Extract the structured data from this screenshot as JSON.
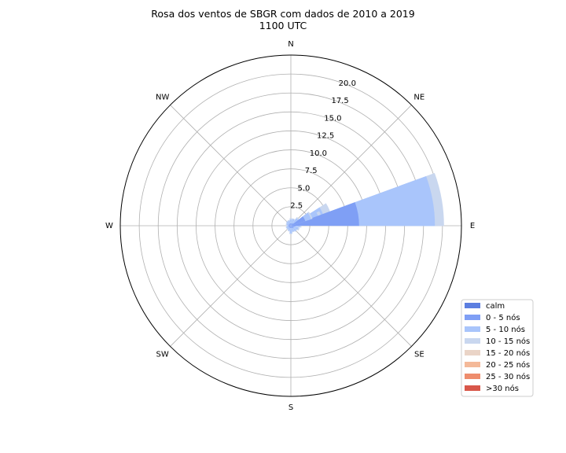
{
  "chart_data": {
    "type": "windrose",
    "title": "Rosa dos ventos de SBGR com dados de 2010 a 2019",
    "subtitle": "1100 UTC",
    "directions": [
      "N",
      "NW",
      "W",
      "SW",
      "S",
      "SE",
      "E",
      "NE"
    ],
    "direction_angles_deg": {
      "N": 0,
      "NW": 315,
      "W": 270,
      "SW": 225,
      "S": 180,
      "SE": 135,
      "E": 90,
      "NE": 45
    },
    "r_ticks": [
      "2.5",
      "5.0",
      "7.5",
      "10.0",
      "12.5",
      "15.0",
      "17.5",
      "20.0"
    ],
    "r_tick_values": [
      2.5,
      5.0,
      7.5,
      10.0,
      12.5,
      15.0,
      17.5,
      20.0
    ],
    "r_max": 22.5,
    "r_tick_label_angle_deg": 22.5,
    "grid": true,
    "legend_position": "lower-right",
    "bins": [
      {
        "name": "calm",
        "color": "#5b7ee0"
      },
      {
        "name": "0 - 5 nós",
        "color": "#7f9ff5"
      },
      {
        "name": "5 - 10 nós",
        "color": "#a9c5fb"
      },
      {
        "name": "10 - 15 nós",
        "color": "#c9d7ef"
      },
      {
        "name": "15 - 20 nós",
        "color": "#ead4c7"
      },
      {
        "name": "20 - 25 nós",
        "color": "#f4b999"
      },
      {
        "name": "25 - 30 nós",
        "color": "#ee8d6d"
      },
      {
        "name": ">30 nós",
        "color": "#d8574a"
      }
    ],
    "sectors": [
      {
        "dir_deg": 0,
        "cumulative": [
          0.3,
          0.8,
          1.0
        ]
      },
      {
        "dir_deg": 22.5,
        "cumulative": [
          0.3,
          0.9,
          1.0
        ]
      },
      {
        "dir_deg": 45,
        "cumulative": [
          0.4,
          1.2,
          1.4
        ]
      },
      {
        "dir_deg": 67.5,
        "cumulative": [
          1.0,
          4.5,
          5.5
        ]
      },
      {
        "dir_deg": 90,
        "cumulative": [
          0.6,
          1.2,
          1.4
        ]
      },
      {
        "dir_deg": 112.5,
        "cumulative": [
          0.4,
          1.0,
          1.2
        ]
      },
      {
        "dir_deg": 135,
        "cumulative": [
          0.4,
          0.9,
          1.0
        ]
      },
      {
        "dir_deg": 157.5,
        "cumulative": [
          0.3,
          0.8,
          0.9
        ]
      },
      {
        "dir_deg": 180,
        "cumulative": [
          0.3,
          1.0,
          1.1
        ]
      },
      {
        "dir_deg": 202.5,
        "cumulative": [
          0.3,
          0.7,
          0.8
        ]
      },
      {
        "dir_deg": 225,
        "cumulative": [
          0.3,
          0.6,
          0.7
        ]
      },
      {
        "dir_deg": 247.5,
        "cumulative": [
          0.3,
          0.6,
          0.7
        ]
      },
      {
        "dir_deg": 270,
        "cumulative": [
          0.3,
          0.5,
          0.6
        ]
      },
      {
        "dir_deg": 292.5,
        "cumulative": [
          0.3,
          0.6,
          0.7
        ]
      },
      {
        "dir_deg": 315,
        "cumulative": [
          0.3,
          0.7,
          0.8
        ]
      },
      {
        "dir_deg": 337.5,
        "cumulative": [
          0.3,
          0.7,
          0.8
        ]
      },
      {
        "dir_deg": 73,
        "cumulative": [
          2.5,
          3.8,
          4.2
        ]
      },
      {
        "dir_deg": 80,
        "cumulative": [
          9.0,
          19.0,
          20.2
        ]
      },
      {
        "dir_deg": 62,
        "cumulative": [
          2.0,
          2.8,
          3.0
        ]
      }
    ]
  }
}
